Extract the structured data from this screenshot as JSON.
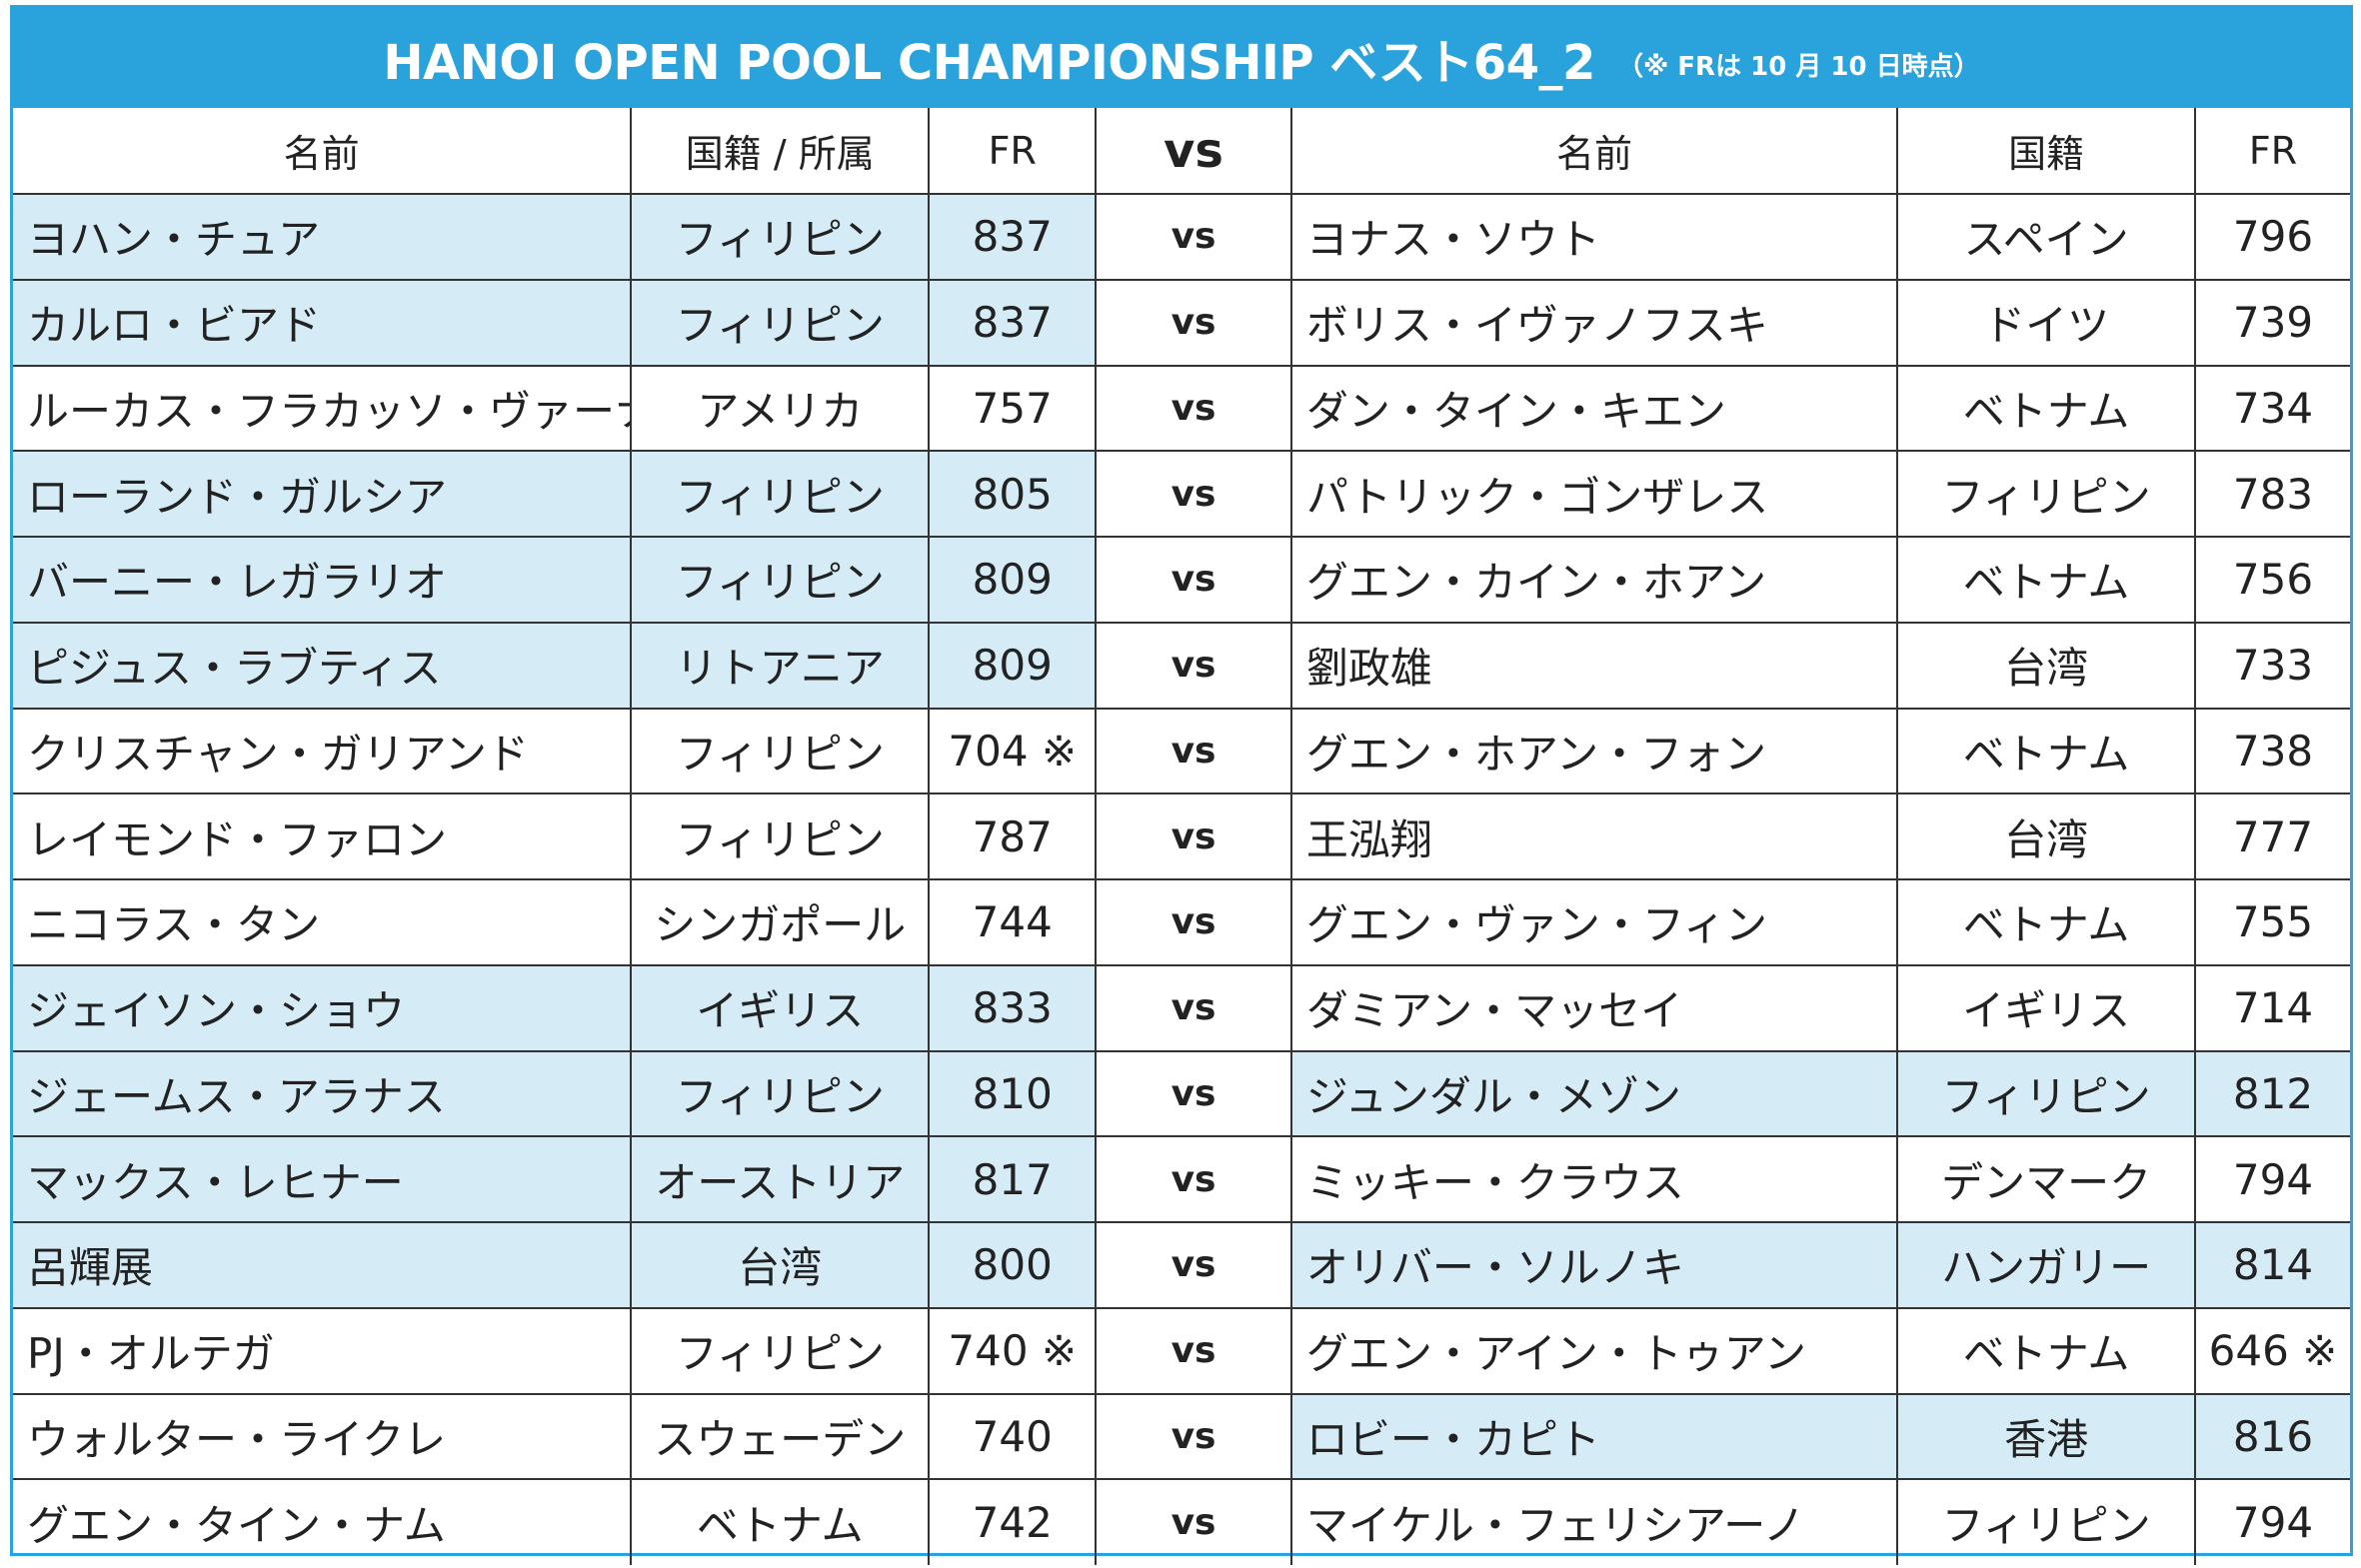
{
  "header": {
    "title": "HANOI OPEN POOL CHAMPIONSHIP ベスト64_2",
    "note": "（※ FRは 10 月 10 日時点）"
  },
  "columns": {
    "left_name": "名前",
    "left_nation": "国籍 / 所属",
    "left_fr": "FR",
    "vs": "vs",
    "right_name": "名前",
    "right_nation": "国籍",
    "right_fr": "FR"
  },
  "highlight_color": "#d5ecf7",
  "accent_color": "#2aa2dc",
  "matches": [
    {
      "left": {
        "name": "ヨハン・チュア",
        "nation": "フィリピン",
        "fr": "837",
        "hl": true
      },
      "vs": "vs",
      "right": {
        "name": "ヨナス・ソウト",
        "nation": "スペイン",
        "fr": "796",
        "hl": false
      }
    },
    {
      "left": {
        "name": "カルロ・ビアド",
        "nation": "フィリピン",
        "fr": "837",
        "hl": true
      },
      "vs": "vs",
      "right": {
        "name": "ボリス・イヴァノフスキ",
        "nation": "ドイツ",
        "fr": "739",
        "hl": false
      }
    },
    {
      "left": {
        "name": "ルーカス・フラカッソ・ヴァーナー",
        "nation": "アメリカ",
        "fr": "757",
        "hl": false
      },
      "vs": "vs",
      "right": {
        "name": "ダン・タイン・キエン",
        "nation": "ベトナム",
        "fr": "734",
        "hl": false
      }
    },
    {
      "left": {
        "name": "ローランド・ガルシア",
        "nation": "フィリピン",
        "fr": "805",
        "hl": true
      },
      "vs": "vs",
      "right": {
        "name": "パトリック・ゴンザレス",
        "nation": "フィリピン",
        "fr": "783",
        "hl": false
      }
    },
    {
      "left": {
        "name": "バーニー・レガラリオ",
        "nation": "フィリピン",
        "fr": "809",
        "hl": true
      },
      "vs": "vs",
      "right": {
        "name": "グエン・カイン・ホアン",
        "nation": "ベトナム",
        "fr": "756",
        "hl": false
      }
    },
    {
      "left": {
        "name": "ピジュス・ラブティス",
        "nation": "リトアニア",
        "fr": "809",
        "hl": true
      },
      "vs": "vs",
      "right": {
        "name": "劉政雄",
        "nation": "台湾",
        "fr": "733",
        "hl": false
      }
    },
    {
      "left": {
        "name": "クリスチャン・ガリアンド",
        "nation": "フィリピン",
        "fr": "704 ※",
        "hl": false
      },
      "vs": "vs",
      "right": {
        "name": "グエン・ホアン・フォン",
        "nation": "ベトナム",
        "fr": "738",
        "hl": false
      }
    },
    {
      "left": {
        "name": "レイモンド・ファロン",
        "nation": "フィリピン",
        "fr": "787",
        "hl": false
      },
      "vs": "vs",
      "right": {
        "name": "王泓翔",
        "nation": "台湾",
        "fr": "777",
        "hl": false
      }
    },
    {
      "left": {
        "name": "ニコラス・タン",
        "nation": "シンガポール",
        "fr": "744",
        "hl": false
      },
      "vs": "vs",
      "right": {
        "name": "グエン・ヴァン・フィン",
        "nation": "ベトナム",
        "fr": "755",
        "hl": false
      }
    },
    {
      "left": {
        "name": "ジェイソン・ショウ",
        "nation": "イギリス",
        "fr": "833",
        "hl": true
      },
      "vs": "vs",
      "right": {
        "name": "ダミアン・マッセイ",
        "nation": "イギリス",
        "fr": "714",
        "hl": false
      }
    },
    {
      "left": {
        "name": "ジェームス・アラナス",
        "nation": "フィリピン",
        "fr": "810",
        "hl": true
      },
      "vs": "vs",
      "right": {
        "name": "ジュンダル・メゾン",
        "nation": "フィリピン",
        "fr": "812",
        "hl": true
      }
    },
    {
      "left": {
        "name": "マックス・レヒナー",
        "nation": "オーストリア",
        "fr": "817",
        "hl": true
      },
      "vs": "vs",
      "right": {
        "name": "ミッキー・クラウス",
        "nation": "デンマーク",
        "fr": "794",
        "hl": false
      }
    },
    {
      "left": {
        "name": "呂輝展",
        "nation": "台湾",
        "fr": "800",
        "hl": true
      },
      "vs": "vs",
      "right": {
        "name": "オリバー・ソルノキ",
        "nation": "ハンガリー",
        "fr": "814",
        "hl": true
      }
    },
    {
      "left": {
        "name": "PJ・オルテガ",
        "nation": "フィリピン",
        "fr": "740 ※",
        "hl": false
      },
      "vs": "vs",
      "right": {
        "name": "グエン・アイン・トゥアン",
        "nation": "ベトナム",
        "fr": "646 ※",
        "hl": false
      }
    },
    {
      "left": {
        "name": "ウォルター・ライクレ",
        "nation": "スウェーデン",
        "fr": "740",
        "hl": false
      },
      "vs": "vs",
      "right": {
        "name": "ロビー・カピト",
        "nation": "香港",
        "fr": "816",
        "hl": true
      }
    },
    {
      "left": {
        "name": "グエン・タイン・ナム",
        "nation": "ベトナム",
        "fr": "742",
        "hl": false
      },
      "vs": "vs",
      "right": {
        "name": "マイケル・フェリシアーノ",
        "nation": "フィリピン",
        "fr": "794",
        "hl": false
      }
    }
  ]
}
